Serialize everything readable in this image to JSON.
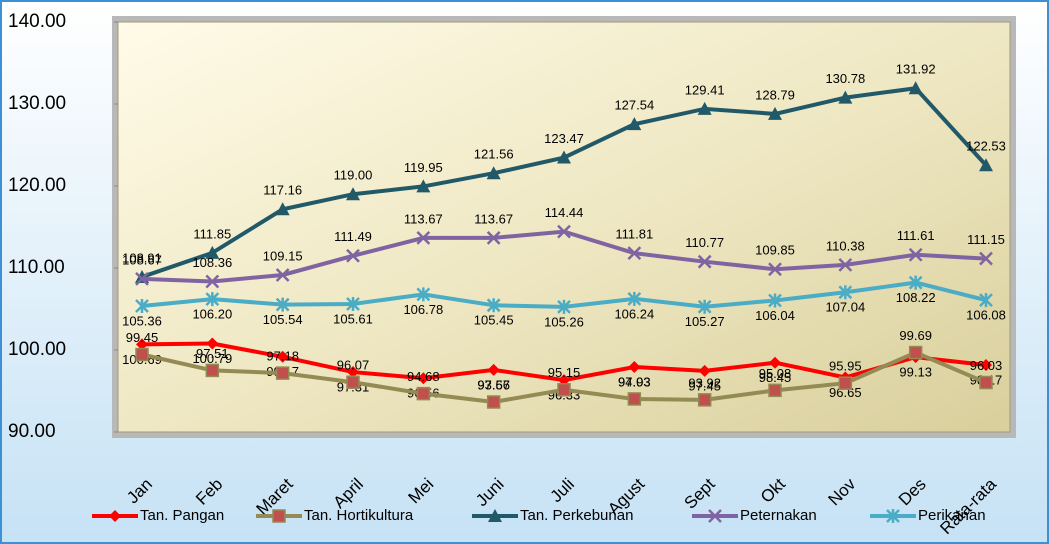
{
  "chart_data": {
    "type": "line",
    "categories": [
      "Jan",
      "Feb",
      "Maret",
      "April",
      "Mei",
      "Juni",
      "Juli",
      "Agust",
      "Sept",
      "Okt",
      "Nov",
      "Des",
      "Rata-rata"
    ],
    "ylim": [
      90,
      140
    ],
    "yticks": [
      {
        "value": 90,
        "label": "90.00"
      },
      {
        "value": 100,
        "label": "100.00"
      },
      {
        "value": 110,
        "label": "110.00"
      },
      {
        "value": 120,
        "label": "120.00"
      },
      {
        "value": 130,
        "label": "130.00"
      },
      {
        "value": 140,
        "label": "140.00"
      }
    ],
    "legend": "bottom",
    "series": [
      {
        "name": "Tan. Pangan",
        "color": "#ff0000",
        "marker": "diamond",
        "values": [
          100.69,
          100.79,
          99.17,
          97.31,
          96.56,
          97.57,
          96.33,
          97.93,
          97.45,
          98.45,
          96.65,
          99.13,
          98.17
        ],
        "value_labels": [
          "100.69",
          "100.79",
          "99.17",
          "97.31",
          "96.56",
          "97.57",
          "96.33",
          "97.93",
          "97.45",
          "98.45",
          "96.65",
          "99.13",
          "98.17"
        ]
      },
      {
        "name": "Tan. Hortikultura",
        "color": "#948a54",
        "marker": "square",
        "values": [
          99.45,
          97.51,
          97.18,
          96.07,
          94.68,
          93.66,
          95.15,
          94.03,
          93.92,
          95.08,
          95.95,
          99.69,
          96.03
        ],
        "value_labels": [
          "99.45",
          "97.51",
          "97.18",
          "96.07",
          "94.68",
          "93.66",
          "95.15",
          "94.03",
          "93.92",
          "95.08",
          "95.95",
          "99.69",
          "96.03"
        ]
      },
      {
        "name": "Tan. Perkebunan",
        "color": "#215968",
        "marker": "triangle",
        "values": [
          108.91,
          111.85,
          117.16,
          119.0,
          119.95,
          121.56,
          123.47,
          127.54,
          129.41,
          128.79,
          130.78,
          131.92,
          122.53
        ],
        "value_labels": [
          "108.91",
          "111.85",
          "117.16",
          "119.00",
          "119.95",
          "121.56",
          "123.47",
          "127.54",
          "129.41",
          "128.79",
          "130.78",
          "131.92",
          "122.53"
        ]
      },
      {
        "name": "Peternakan",
        "color": "#8064a2",
        "marker": "x",
        "values": [
          108.67,
          108.36,
          109.15,
          111.49,
          113.67,
          113.67,
          114.44,
          111.81,
          110.77,
          109.85,
          110.38,
          111.61,
          111.15
        ],
        "value_labels": [
          "108.67",
          "108.36",
          "109.15",
          "111.49",
          "113.67",
          "113.67",
          "114.44",
          "111.81",
          "110.77",
          "109.85",
          "110.38",
          "111.61",
          "111.15"
        ]
      },
      {
        "name": "Perikanan",
        "color": "#4bacc6",
        "marker": "star",
        "values": [
          105.36,
          106.2,
          105.54,
          105.61,
          106.78,
          105.45,
          105.26,
          106.24,
          105.27,
          106.04,
          107.04,
          108.22,
          106.08
        ],
        "value_labels": [
          "105.36",
          "106.20",
          "105.54",
          "105.61",
          "106.78",
          "105.45",
          "105.26",
          "106.24",
          "105.27",
          "106.04",
          "107.04",
          "108.22",
          "106.08"
        ]
      }
    ]
  }
}
